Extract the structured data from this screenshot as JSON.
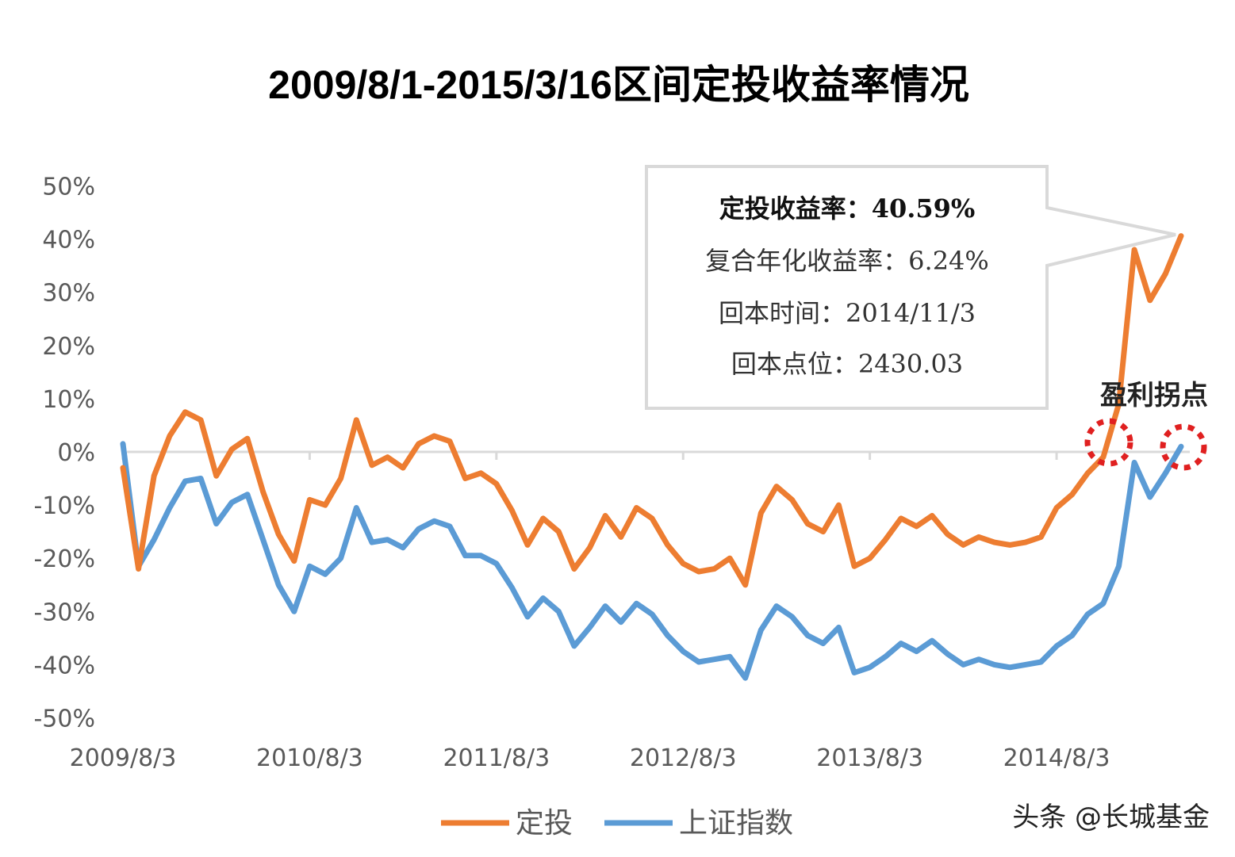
{
  "chart_data": {
    "type": "line",
    "title": "2009/8/1-2015/3/16区间定投收益率情况",
    "xlabel": "",
    "ylabel": "",
    "ylim": [
      -50,
      50
    ],
    "y_ticks": [
      "50%",
      "40%",
      "30%",
      "20%",
      "10%",
      "0%",
      "-10%",
      "-20%",
      "-30%",
      "-40%",
      "-50%"
    ],
    "y_tick_values": [
      50,
      40,
      30,
      20,
      10,
      0,
      -10,
      -20,
      -30,
      -40,
      -50
    ],
    "x_ticks": [
      "2009/8/3",
      "2010/8/3",
      "2011/8/3",
      "2012/8/3",
      "2013/8/3",
      "2014/8/3"
    ],
    "x_tick_index": [
      0,
      12,
      24,
      36,
      48,
      60
    ],
    "x": [
      "2009/8",
      "2009/9",
      "2009/10",
      "2009/11",
      "2009/12",
      "2010/1",
      "2010/2",
      "2010/3",
      "2010/4",
      "2010/5",
      "2010/6",
      "2010/7",
      "2010/8",
      "2010/9",
      "2010/10",
      "2010/11",
      "2010/12",
      "2011/1",
      "2011/2",
      "2011/3",
      "2011/4",
      "2011/5",
      "2011/6",
      "2011/7",
      "2011/8",
      "2011/9",
      "2011/10",
      "2011/11",
      "2011/12",
      "2012/1",
      "2012/2",
      "2012/3",
      "2012/4",
      "2012/5",
      "2012/6",
      "2012/7",
      "2012/8",
      "2012/9",
      "2012/10",
      "2012/11",
      "2012/12",
      "2013/1",
      "2013/2",
      "2013/3",
      "2013/4",
      "2013/5",
      "2013/6",
      "2013/7",
      "2013/8",
      "2013/9",
      "2013/10",
      "2013/11",
      "2013/12",
      "2014/1",
      "2014/2",
      "2014/3",
      "2014/4",
      "2014/5",
      "2014/6",
      "2014/7",
      "2014/8",
      "2014/9",
      "2014/10",
      "2014/11",
      "2014/12",
      "2015/1",
      "2015/2",
      "2015/3",
      "2015/3/16"
    ],
    "grid": false,
    "legend_position": "bottom",
    "series": [
      {
        "name": "定投",
        "color": "#ED7D31",
        "values": [
          -3,
          -22,
          -4.5,
          3,
          7.5,
          6,
          -4.5,
          0.5,
          2.5,
          -7.5,
          -15.5,
          -20.5,
          -9,
          -10,
          -5,
          6,
          -2.5,
          -1,
          -3,
          1.5,
          3,
          2,
          -5,
          -4,
          -6,
          -11,
          -17.5,
          -12.5,
          -15,
          -22,
          -18,
          -12,
          -16,
          -10.5,
          -12.5,
          -17.5,
          -21,
          -22.5,
          -22,
          -20,
          -25,
          -11.5,
          -6.5,
          -9,
          -13.5,
          -15,
          -10,
          -21.5,
          -20,
          -16.5,
          -12.5,
          -14,
          -12,
          -15.5,
          -17.5,
          -16,
          -17,
          -17.5,
          -17,
          -16,
          -10.5,
          -8,
          -4,
          -1,
          9,
          38,
          28.5,
          33.5,
          40.59
        ]
      },
      {
        "name": "上证指数",
        "color": "#5B9BD5",
        "values": [
          1.5,
          -21.5,
          -16.5,
          -10.5,
          -5.5,
          -5,
          -13.5,
          -9.5,
          -8,
          -16.5,
          -25,
          -30,
          -21.5,
          -23,
          -20,
          -10.5,
          -17,
          -16.5,
          -18,
          -14.5,
          -13,
          -14,
          -19.5,
          -19.5,
          -21,
          -25.5,
          -31,
          -27.5,
          -30,
          -36.5,
          -33,
          -29,
          -32,
          -28.5,
          -30.5,
          -34.5,
          -37.5,
          -39.5,
          -39,
          -38.5,
          -42.5,
          -33.5,
          -29,
          -31,
          -34.5,
          -36,
          -33,
          -41.5,
          -40.5,
          -38.5,
          -36,
          -37.5,
          -35.5,
          -38,
          -40,
          -39,
          -40,
          -40.5,
          -40,
          -39.5,
          -36.5,
          -34.5,
          -30.5,
          -28.5,
          -21.5,
          -2,
          -8.5,
          -4,
          1
        ]
      }
    ],
    "callout": {
      "lines": [
        "定投收益率：40.59%",
        "复合年化收益率：6.24%",
        "回本时间：2014/11/3",
        "回本点位：2430.03"
      ],
      "border_color": "#D9D9D9"
    },
    "annotation": {
      "label": "盈利拐点",
      "marker_color": "#E02020"
    }
  },
  "watermark": "头条 @长城基金"
}
